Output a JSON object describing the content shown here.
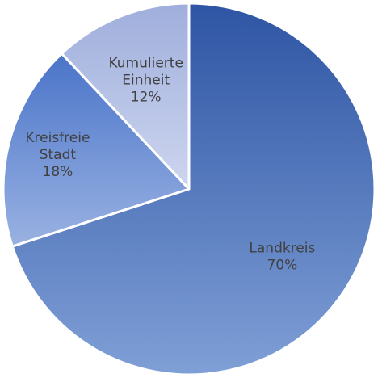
{
  "chart_data": {
    "type": "pie",
    "title": "",
    "slices": [
      {
        "label": "Landkreis",
        "value": 70,
        "value_text": "70%",
        "color_start": "#2E55A4",
        "color_end": "#7F9FD6"
      },
      {
        "label": "Kreisfreie Stadt",
        "label_lines": [
          "Kreisfreie",
          "Stadt"
        ],
        "value": 18,
        "value_text": "18%",
        "color_start": "#4A74C9",
        "color_end": "#9AB2E2"
      },
      {
        "label": "Kumulierte Einheit",
        "label_lines": [
          "Kumulierte",
          "Einheit"
        ],
        "value": 12,
        "value_text": "12%",
        "color_start": "#9FAEDC",
        "color_end": "#CDD6EF"
      }
    ],
    "start_angle_deg": 0,
    "direction": "clockwise",
    "legend": "none",
    "data_labels": "inside"
  }
}
